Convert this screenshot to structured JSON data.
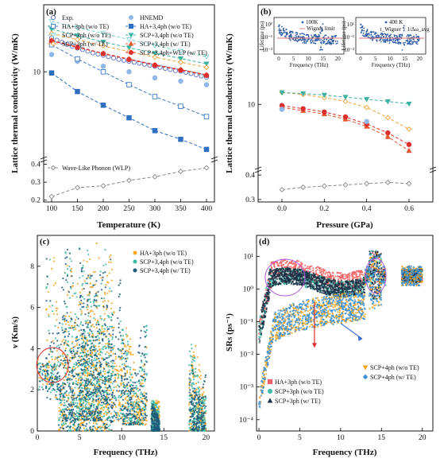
{
  "chart_data": [
    {
      "panel": "(a)",
      "type": "line",
      "xlabel": "Temperature (K)",
      "ylabel": "Lattice thermal conductivity (W/mK)",
      "x_ticks": [
        "100",
        "150",
        "200",
        "250",
        "300",
        "350",
        "400"
      ],
      "y_ticks_upper": [
        "10"
      ],
      "y_ticks_lower": [
        "0.4",
        "0.3",
        "0.2"
      ],
      "x": [
        100,
        150,
        200,
        250,
        300,
        350,
        400
      ],
      "series": [
        {
          "name": "Exp.",
          "color": "#5b6fc4",
          "marker": "circle-open",
          "x": [
            100,
            110,
            120,
            130,
            140,
            150,
            160,
            170,
            180,
            190,
            200,
            210,
            220,
            230,
            240,
            250,
            260,
            270,
            280,
            290,
            300,
            310,
            320,
            330,
            340,
            350,
            360,
            370,
            380,
            390,
            400
          ],
          "values": [
            18,
            17.3,
            16.7,
            16.1,
            15.6,
            15.1,
            14.7,
            14.3,
            13.9,
            13.6,
            13.3,
            13.0,
            12.7,
            12.4,
            12.2,
            12.0,
            11.8,
            11.6,
            11.4,
            11.2,
            11.0,
            10.8,
            10.6,
            10.4,
            10.2,
            10.1,
            9.9,
            9.7,
            9.5,
            9.3,
            9.1
          ]
        },
        {
          "name": "HNEMD",
          "color": "#8fb8e6",
          "marker": "circle-filled",
          "x": [
            100,
            150,
            200,
            250,
            300,
            350,
            400
          ],
          "values": [
            13.5,
            12.0,
            11.0,
            10.0,
            9.0,
            8.5,
            8.0
          ]
        },
        {
          "name": "HA+3ph (w/o TE)",
          "color": "#3a78c4",
          "marker": "square-open",
          "values": [
            16,
            12.5,
            10,
            8,
            6.5,
            5.5,
            4.6
          ]
        },
        {
          "name": "HA+3,4ph (w/o TE)",
          "color": "#2f6fc0",
          "marker": "square-filled",
          "values": [
            9.8,
            7.1,
            5.6,
            4.5,
            3.6,
            3.1,
            2.6
          ]
        },
        {
          "name": "SCP+3ph (w/o TE)",
          "color": "#7fd3d8",
          "marker": "tri-down-open",
          "values": [
            24,
            21.5,
            19.5,
            17.5,
            15.8,
            14.3,
            13
          ]
        },
        {
          "name": "SCP+3,4ph (w/o TE)",
          "color": "#3bb3a4",
          "marker": "tri-down-filled",
          "values": [
            21,
            18.7,
            16.8,
            15.2,
            13.8,
            12.6,
            11.5
          ]
        },
        {
          "name": "SCP+3ph (w/ TE)",
          "color": "#f2a33a",
          "marker": "diamond-open",
          "values": [
            19.5,
            17.5,
            15.7,
            14.2,
            12.9,
            11.8,
            10.8
          ]
        },
        {
          "name": "SCP+3,4ph (w/ TE)",
          "color": "#e8562a",
          "marker": "tri-up-filled",
          "values": [
            17.3,
            15.4,
            13.8,
            12.5,
            11.3,
            10.4,
            9.5
          ]
        },
        {
          "name": "SCP+3,4ph+WLP (w/ TE)",
          "color": "#e02e2e",
          "marker": "circle-filled",
          "values": [
            17.1,
            15.3,
            13.7,
            12.4,
            11.2,
            10.3,
            9.4
          ]
        },
        {
          "name": "Wave-Like Phonon (WLP)",
          "color": "#888888",
          "marker": "diamond-open",
          "values": [
            0.22,
            0.27,
            0.28,
            0.31,
            0.33,
            0.36,
            0.38
          ]
        }
      ]
    },
    {
      "panel": "(b)",
      "type": "line",
      "xlabel": "Pressure (GPa)",
      "ylabel": "Lattice thermal conductivity (W/mK)",
      "x_ticks": [
        "0.0",
        "0.2",
        "0.4",
        "0.6"
      ],
      "y_ticks_upper": [
        "10"
      ],
      "y_ticks_lower": [
        "0.4",
        "0.3"
      ],
      "x": [
        0,
        0.1,
        0.2,
        0.3,
        0.4,
        0.5,
        0.6
      ],
      "series": [
        {
          "name": "SCP+3ph (w/ TE)",
          "color": "#f2a33a",
          "values": [
            12.2,
            11.8,
            11.2,
            10.5,
            9.5,
            8.0,
            6.6
          ]
        },
        {
          "name": "SCP+3,4ph (w/o TE)",
          "color": "#3bb3a4",
          "values": [
            12.2,
            12.0,
            11.7,
            11.3,
            10.9,
            10.5,
            10.1
          ]
        },
        {
          "name": "SCP+3,4ph (w/ TE)",
          "color": "#e8562a",
          "values": [
            9.5,
            9.0,
            8.5,
            7.8,
            6.9,
            5.8,
            4.6
          ]
        },
        {
          "name": "SCP+3,4ph+WLP (w/ TE)",
          "color": "#e02e2e",
          "values": [
            9.8,
            9.3,
            8.8,
            8.1,
            7.2,
            6.2,
            5.1
          ]
        },
        {
          "name": "HNEMD",
          "color": "#8fb8e6",
          "values": [
            9.2,
            null,
            null,
            null,
            7.5,
            null,
            null
          ]
        },
        {
          "name": "Wave-Like Phonon (WLP)",
          "color": "#888888",
          "values": [
            0.34,
            0.35,
            0.355,
            0.36,
            0.365,
            0.37,
            0.365
          ]
        }
      ],
      "insets": [
        {
          "temp_label": "100K",
          "legend": [
            "100K",
            "Wigner limit"
          ],
          "ylabel": "Lifetime (ps)",
          "xlabel": "Frequency (THz)",
          "x_ticks": [
            "0",
            "5",
            "10",
            "15",
            "20"
          ],
          "y_ticks": [
            "10¹",
            "10⁻¹",
            "10⁻³"
          ]
        },
        {
          "temp_label": "400 K",
          "formula": "τ_Wigner = 1/Δω_avg",
          "ylabel": "Lifetime (ps)",
          "xlabel": "Frequency (THz)",
          "x_ticks": [
            "0",
            "5",
            "10",
            "15",
            "20"
          ],
          "y_ticks": [
            "10¹",
            "10⁻¹",
            "10⁻³"
          ]
        }
      ]
    },
    {
      "panel": "(c)",
      "type": "scatter",
      "xlabel": "Frequency (THz)",
      "ylabel": "ν (Km/s)",
      "x_ticks": [
        "0",
        "5",
        "10",
        "15",
        "20"
      ],
      "y_ticks": [
        "0",
        "2",
        "4",
        "6",
        "8"
      ],
      "xlim": [
        0,
        21
      ],
      "ylim": [
        0,
        9.5
      ],
      "series": [
        {
          "name": "HA+3ph (w/o TE)",
          "color": "#f5a623"
        },
        {
          "name": "SCP+3,4ph (w/o TE)",
          "color": "#3fb8a8"
        },
        {
          "name": "SCP+3,4ph (w/ TE)",
          "color": "#1f5a7a"
        }
      ]
    },
    {
      "panel": "(d)",
      "type": "scatter",
      "xlabel": "Frequency (THz)",
      "ylabel": "SRs (ps⁻¹)",
      "x_ticks": [
        "0",
        "5",
        "10",
        "15",
        "20"
      ],
      "y_ticks": [
        "10¹",
        "10⁰",
        "10⁻¹",
        "10⁻²",
        "10⁻³",
        "10⁻⁴"
      ],
      "series": [
        {
          "name": "SCP+4ph (w/o TE)",
          "color": "#f5a623"
        },
        {
          "name": "SCP+4ph (w/ TE)",
          "color": "#3a8fd6"
        },
        {
          "name": "HA+3ph (w/o TE)",
          "color": "#f26060"
        },
        {
          "name": "SCP+3ph (w/o TE)",
          "color": "#3fb8a8"
        },
        {
          "name": "SCP+3ph (w/ TE)",
          "color": "#1b2f45"
        }
      ]
    }
  ]
}
